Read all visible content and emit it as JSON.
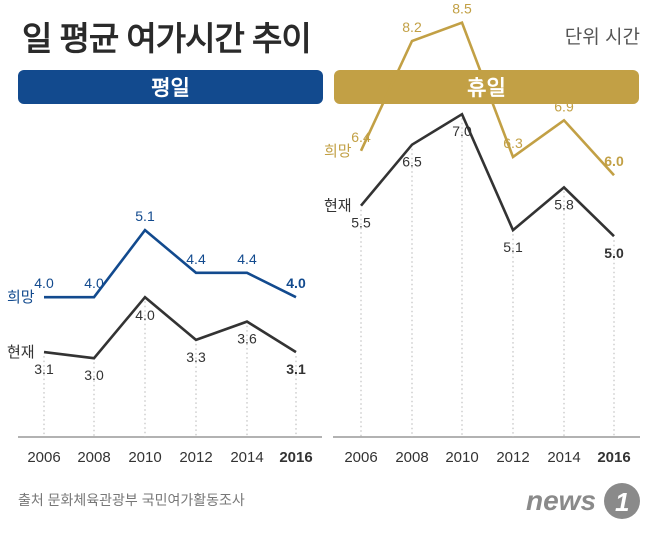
{
  "title": "일 평균 여가시간 추이",
  "unit": "단위 시간",
  "source": "출처  문화체육관광부 국민여가활동조사",
  "logo_text": "news1",
  "colors": {
    "weekday_accent": "#124a8e",
    "holiday_accent": "#c2a045",
    "current_line": "#333333",
    "axis": "#999999"
  },
  "chart_data": [
    {
      "type": "line",
      "title": "평일",
      "categories": [
        "2006",
        "2008",
        "2010",
        "2012",
        "2014",
        "2016"
      ],
      "series": [
        {
          "name": "희망",
          "values": [
            4.0,
            4.0,
            5.1,
            4.4,
            4.4,
            4.0
          ]
        },
        {
          "name": "현재",
          "values": [
            3.1,
            3.0,
            4.0,
            3.3,
            3.6,
            3.1
          ]
        }
      ],
      "ylim": [
        0,
        9
      ],
      "xlabel": "",
      "ylabel": "",
      "grid": false
    },
    {
      "type": "line",
      "title": "휴일",
      "categories": [
        "2006",
        "2008",
        "2010",
        "2012",
        "2014",
        "2016"
      ],
      "series": [
        {
          "name": "희망",
          "values": [
            6.4,
            8.2,
            8.5,
            6.3,
            6.9,
            6.0
          ]
        },
        {
          "name": "현재",
          "values": [
            5.5,
            6.5,
            7.0,
            5.1,
            5.8,
            5.0
          ]
        }
      ],
      "ylim": [
        0,
        9
      ],
      "xlabel": "",
      "ylabel": "",
      "grid": false
    }
  ]
}
